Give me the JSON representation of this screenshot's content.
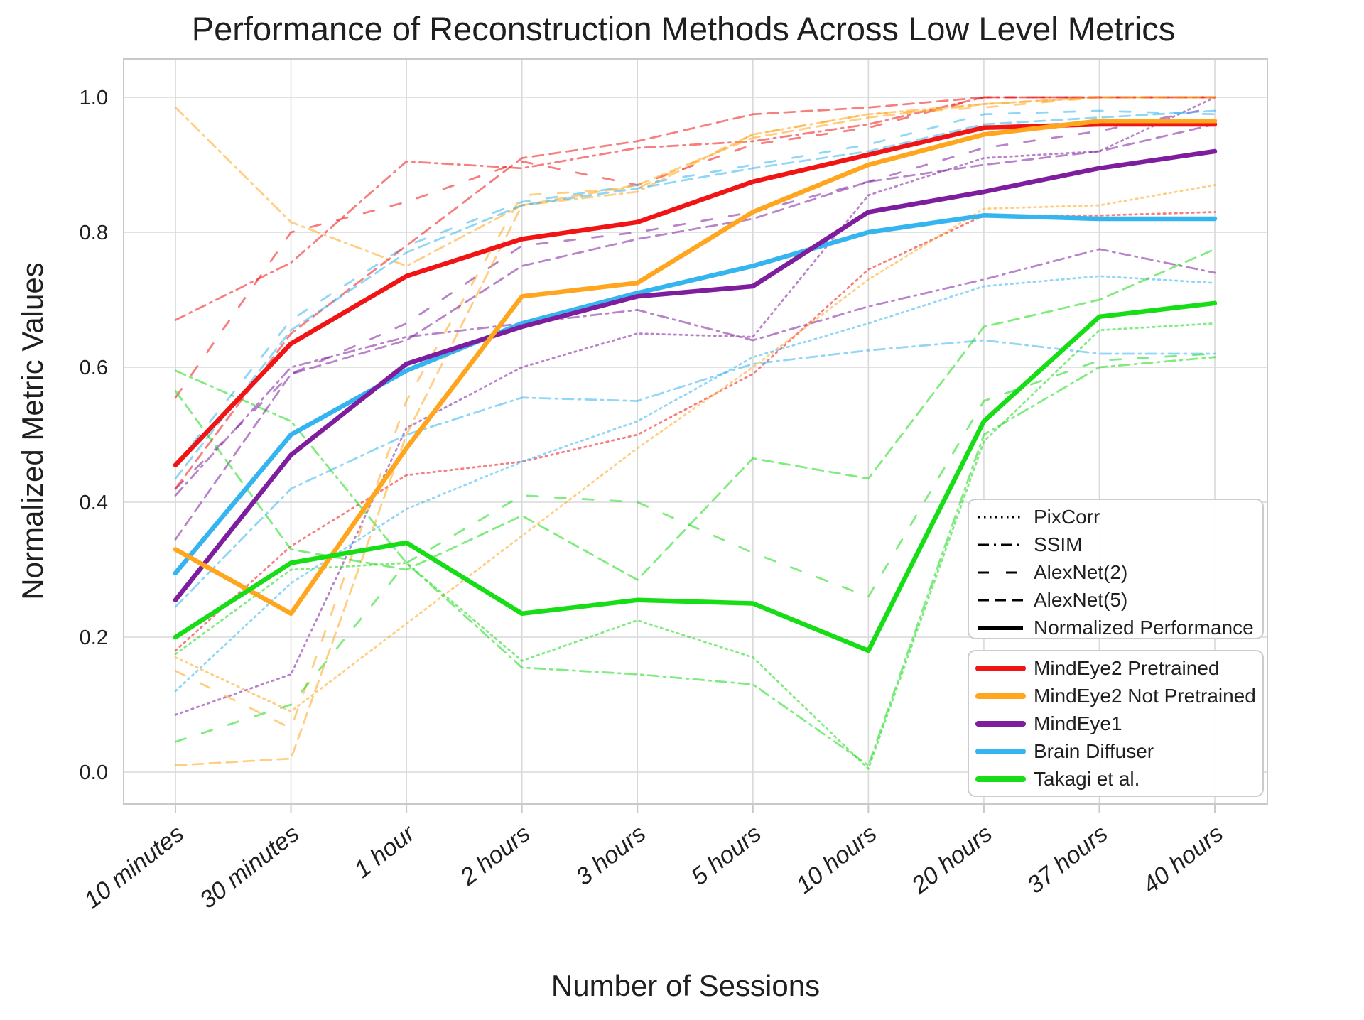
{
  "title": "Performance of Reconstruction Methods Across Low Level Metrics",
  "axes": {
    "x_label": "Number of Sessions",
    "y_label": "Normalized Metric Values",
    "x_ticks": [
      "10 minutes",
      "30 minutes",
      "1 hour",
      "2 hours",
      "3 hours",
      "5 hours",
      "10 hours",
      "20 hours",
      "37 hours",
      "40 hours"
    ],
    "y_ticks": [
      "0.0",
      "0.2",
      "0.4",
      "0.6",
      "0.8",
      "1.0"
    ],
    "y_tick_values": [
      0.0,
      0.2,
      0.4,
      0.6,
      0.8,
      1.0
    ]
  },
  "chart_data": {
    "type": "line",
    "title": "Performance of Reconstruction Methods Across Low Level Metrics",
    "xlabel": "Number of Sessions",
    "ylabel": "Normalized Metric Values",
    "categories": [
      "10 minutes",
      "30 minutes",
      "1 hour",
      "2 hours",
      "3 hours",
      "5 hours",
      "10 hours",
      "20 hours",
      "37 hours",
      "40 hours"
    ],
    "ylim": [
      -0.05,
      1.06
    ],
    "grid": "on",
    "legend_position": "lower right",
    "colors": {
      "red": "#f01414",
      "orange": "#ffa51e",
      "purple": "#7e1d9e",
      "blue": "#35b5f0",
      "green": "#17dd17"
    },
    "dash_styles": {
      "PixCorr": "2.5 5.5",
      "SSIM": "15 7 3 7",
      "AlexNet(2)": "15 24",
      "AlexNet(5)": "15 9",
      "Normalized Performance": ""
    },
    "style_legend": [
      {
        "label": "PixCorr",
        "dash": "2.5 5.5",
        "width": 3
      },
      {
        "label": "SSIM",
        "dash": "15 7 3 7",
        "width": 3
      },
      {
        "label": "AlexNet(2)",
        "dash": "15 24",
        "width": 3
      },
      {
        "label": "AlexNet(5)",
        "dash": "15 9",
        "width": 3
      },
      {
        "label": "Normalized Performance",
        "dash": "",
        "width": 6
      }
    ],
    "color_legend": [
      {
        "label": "MindEye2 Pretrained",
        "color_key": "red"
      },
      {
        "label": "MindEye2 Not Pretrained",
        "color_key": "orange"
      },
      {
        "label": "MindEye1",
        "color_key": "purple"
      },
      {
        "label": "Brain Diffuser",
        "color_key": "blue"
      },
      {
        "label": "Takagi et al.",
        "color_key": "green"
      }
    ],
    "series": [
      {
        "method": "MindEye2 Pretrained",
        "metric": "PixCorr",
        "color_key": "red",
        "values": [
          0.18,
          0.335,
          0.44,
          0.46,
          0.5,
          0.59,
          0.745,
          0.825,
          0.825,
          0.83
        ]
      },
      {
        "method": "MindEye2 Not Pretrained",
        "metric": "PixCorr",
        "color_key": "orange",
        "values": [
          0.17,
          0.09,
          0.22,
          0.35,
          0.48,
          0.6,
          0.73,
          0.835,
          0.84,
          0.87
        ]
      },
      {
        "method": "MindEye1",
        "metric": "PixCorr",
        "color_key": "purple",
        "values": [
          0.085,
          0.145,
          0.51,
          0.6,
          0.65,
          0.645,
          0.855,
          0.91,
          0.92,
          1.0
        ]
      },
      {
        "method": "Brain Diffuser",
        "metric": "PixCorr",
        "color_key": "blue",
        "values": [
          0.12,
          0.28,
          0.39,
          0.46,
          0.52,
          0.615,
          0.665,
          0.72,
          0.735,
          0.725
        ]
      },
      {
        "method": "Takagi et al.",
        "metric": "PixCorr",
        "color_key": "green",
        "values": [
          0.175,
          0.3,
          0.31,
          0.165,
          0.225,
          0.17,
          0.005,
          0.49,
          0.655,
          0.665
        ]
      },
      {
        "method": "MindEye2 Pretrained",
        "metric": "SSIM",
        "color_key": "red",
        "values": [
          0.67,
          0.755,
          0.905,
          0.895,
          0.925,
          0.935,
          0.96,
          1.0,
          1.0,
          1.0
        ]
      },
      {
        "method": "MindEye2 Not Pretrained",
        "metric": "SSIM",
        "color_key": "orange",
        "values": [
          0.985,
          0.815,
          0.75,
          0.84,
          0.86,
          0.945,
          0.975,
          0.99,
          1.0,
          1.0
        ]
      },
      {
        "method": "MindEye1",
        "metric": "SSIM",
        "color_key": "purple",
        "values": [
          0.41,
          0.6,
          0.645,
          0.665,
          0.685,
          0.64,
          0.69,
          0.73,
          0.775,
          0.74
        ]
      },
      {
        "method": "Brain Diffuser",
        "metric": "SSIM",
        "color_key": "blue",
        "values": [
          0.245,
          0.42,
          0.5,
          0.555,
          0.55,
          0.605,
          0.625,
          0.64,
          0.62,
          0.62
        ]
      },
      {
        "method": "Takagi et al.",
        "metric": "SSIM",
        "color_key": "green",
        "values": [
          0.595,
          0.52,
          0.31,
          0.155,
          0.145,
          0.13,
          0.01,
          0.5,
          0.6,
          0.615
        ]
      },
      {
        "method": "MindEye2 Pretrained",
        "metric": "AlexNet(2)",
        "color_key": "red",
        "values": [
          0.555,
          0.8,
          0.845,
          0.905,
          0.87,
          0.93,
          0.955,
          1.0,
          1.0,
          1.0
        ]
      },
      {
        "method": "MindEye2 Not Pretrained",
        "metric": "AlexNet(2)",
        "color_key": "orange",
        "values": [
          0.15,
          0.065,
          0.55,
          0.855,
          0.865,
          0.945,
          0.975,
          0.985,
          1.0,
          1.0
        ]
      },
      {
        "method": "MindEye1",
        "metric": "AlexNet(2)",
        "color_key": "purple",
        "values": [
          0.42,
          0.59,
          0.665,
          0.78,
          0.8,
          0.83,
          0.875,
          0.925,
          0.95,
          0.985
        ]
      },
      {
        "method": "Brain Diffuser",
        "metric": "AlexNet(2)",
        "color_key": "blue",
        "values": [
          0.455,
          0.67,
          0.78,
          0.845,
          0.87,
          0.9,
          0.93,
          0.975,
          0.98,
          0.975
        ]
      },
      {
        "method": "Takagi et al.",
        "metric": "AlexNet(2)",
        "color_key": "green",
        "values": [
          0.045,
          0.1,
          0.31,
          0.41,
          0.4,
          0.325,
          0.26,
          0.55,
          0.61,
          0.62
        ]
      },
      {
        "method": "MindEye2 Pretrained",
        "metric": "AlexNet(5)",
        "color_key": "red",
        "values": [
          0.42,
          0.65,
          0.78,
          0.91,
          0.935,
          0.975,
          0.985,
          1.0,
          1.0,
          1.0
        ]
      },
      {
        "method": "MindEye2 Not Pretrained",
        "metric": "AlexNet(5)",
        "color_key": "orange",
        "values": [
          0.01,
          0.02,
          0.5,
          0.84,
          0.87,
          0.94,
          0.97,
          0.99,
          1.0,
          1.0
        ]
      },
      {
        "method": "MindEye1",
        "metric": "AlexNet(5)",
        "color_key": "purple",
        "values": [
          0.345,
          0.59,
          0.64,
          0.75,
          0.79,
          0.82,
          0.875,
          0.9,
          0.92,
          0.96
        ]
      },
      {
        "method": "Brain Diffuser",
        "metric": "AlexNet(5)",
        "color_key": "blue",
        "values": [
          0.435,
          0.655,
          0.77,
          0.84,
          0.865,
          0.895,
          0.92,
          0.96,
          0.97,
          0.98
        ]
      },
      {
        "method": "Takagi et al.",
        "metric": "AlexNet(5)",
        "color_key": "green",
        "values": [
          0.565,
          0.33,
          0.3,
          0.38,
          0.285,
          0.465,
          0.435,
          0.66,
          0.7,
          0.775
        ]
      },
      {
        "method": "Brain Diffuser",
        "metric": "Normalized Performance",
        "color_key": "blue",
        "values": [
          0.295,
          0.5,
          0.595,
          0.665,
          0.71,
          0.75,
          0.8,
          0.825,
          0.82,
          0.82
        ]
      },
      {
        "method": "MindEye1",
        "metric": "Normalized Performance",
        "color_key": "purple",
        "values": [
          0.255,
          0.47,
          0.605,
          0.66,
          0.705,
          0.72,
          0.83,
          0.86,
          0.895,
          0.92
        ]
      },
      {
        "method": "MindEye2 Pretrained",
        "metric": "Normalized Performance",
        "color_key": "red",
        "values": [
          0.455,
          0.635,
          0.735,
          0.79,
          0.815,
          0.875,
          0.915,
          0.955,
          0.96,
          0.96
        ]
      },
      {
        "method": "MindEye2 Not Pretrained",
        "metric": "Normalized Performance",
        "color_key": "orange",
        "values": [
          0.33,
          0.235,
          0.48,
          0.705,
          0.725,
          0.83,
          0.9,
          0.945,
          0.965,
          0.965
        ]
      },
      {
        "method": "Takagi et al.",
        "metric": "Normalized Performance",
        "color_key": "green",
        "values": [
          0.2,
          0.31,
          0.34,
          0.235,
          0.255,
          0.25,
          0.18,
          0.52,
          0.675,
          0.695
        ]
      }
    ]
  }
}
